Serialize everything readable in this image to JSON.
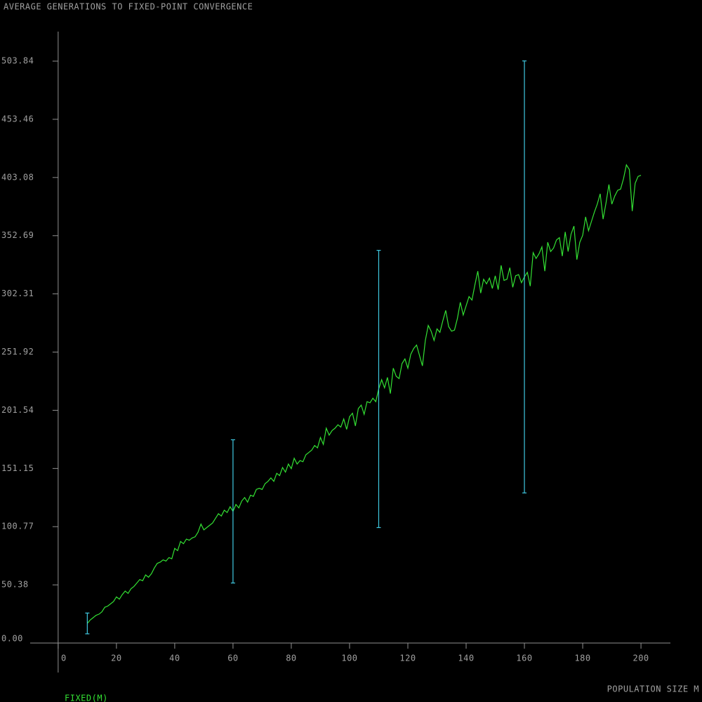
{
  "chart_data": {
    "type": "line",
    "title": "AVERAGE GENERATIONS TO FIXED-POINT CONVERGENCE",
    "x_label": "POPULATION SIZE M",
    "xlim": [
      -9.6,
      210.1
    ],
    "ylim": [
      -25.5,
      529.4
    ],
    "xticks": [
      0,
      20,
      40,
      60,
      80,
      100,
      120,
      140,
      160,
      180,
      200
    ],
    "yticks": [
      {
        "value": 0,
        "label": "0.00"
      },
      50.38,
      100.77,
      151.15,
      201.54,
      251.92,
      302.31,
      352.69,
      403.08,
      453.46,
      503.84
    ],
    "series": [
      {
        "name": "FIXED(M)",
        "color": "#33e033",
        "x": [
          10,
          11,
          12,
          13,
          14,
          15,
          16,
          17,
          18,
          19,
          20,
          21,
          22,
          23,
          24,
          25,
          26,
          27,
          28,
          29,
          30,
          31,
          32,
          33,
          34,
          35,
          36,
          37,
          38,
          39,
          40,
          41,
          42,
          43,
          44,
          45,
          46,
          47,
          48,
          49,
          50,
          51,
          52,
          53,
          54,
          55,
          56,
          57,
          58,
          59,
          60,
          61,
          62,
          63,
          64,
          65,
          66,
          67,
          68,
          69,
          70,
          71,
          72,
          73,
          74,
          75,
          76,
          77,
          78,
          79,
          80,
          81,
          82,
          83,
          84,
          85,
          86,
          87,
          88,
          89,
          90,
          91,
          92,
          93,
          94,
          95,
          96,
          97,
          98,
          99,
          100,
          101,
          102,
          103,
          104,
          105,
          106,
          107,
          108,
          109,
          110,
          111,
          112,
          113,
          114,
          115,
          116,
          117,
          118,
          119,
          120,
          121,
          122,
          123,
          124,
          125,
          126,
          127,
          128,
          129,
          130,
          131,
          132,
          133,
          134,
          135,
          136,
          137,
          138,
          139,
          140,
          141,
          142,
          143,
          144,
          145,
          146,
          147,
          148,
          149,
          150,
          151,
          152,
          153,
          154,
          155,
          156,
          157,
          158,
          159,
          160,
          161,
          162,
          163,
          164,
          165,
          166,
          167,
          168,
          169,
          170,
          171,
          172,
          173,
          174,
          175,
          176,
          177,
          178,
          179,
          180,
          181,
          182,
          183,
          184,
          185,
          186,
          187,
          188,
          189,
          190,
          191,
          192,
          193,
          194,
          195,
          196,
          197,
          198,
          199,
          200
        ],
        "values": [
          17,
          20,
          22,
          24,
          25,
          27,
          31,
          32,
          34,
          36,
          40,
          38,
          42,
          45,
          43,
          47,
          49,
          52,
          55,
          54,
          59,
          57,
          60,
          65,
          69,
          70,
          72,
          71,
          74,
          73,
          82,
          80,
          88,
          86,
          90,
          89,
          91,
          92,
          96,
          103,
          98,
          100,
          102,
          104,
          108,
          112,
          110,
          115,
          113,
          118,
          114,
          120,
          117,
          123,
          126,
          122,
          128,
          127,
          133,
          134,
          133,
          138,
          140,
          143,
          140,
          147,
          145,
          152,
          148,
          155,
          151,
          160,
          155,
          158,
          157,
          163,
          165,
          167,
          171,
          169,
          178,
          172,
          186,
          180,
          184,
          186,
          189,
          187,
          194,
          185,
          196,
          199,
          188,
          203,
          206,
          198,
          209,
          208,
          212,
          209,
          220,
          228,
          221,
          230,
          216,
          238,
          231,
          229,
          242,
          246,
          238,
          250,
          255,
          258,
          249,
          240,
          262,
          275,
          270,
          262,
          272,
          269,
          279,
          288,
          274,
          270,
          271,
          281,
          295,
          284,
          292,
          300,
          297,
          310,
          322,
          303,
          315,
          311,
          316,
          307,
          318,
          306,
          327,
          314,
          315,
          325,
          308,
          318,
          319,
          312,
          317,
          321,
          309,
          338,
          333,
          337,
          343,
          322,
          347,
          339,
          342,
          349,
          351,
          335,
          356,
          339,
          354,
          361,
          332,
          347,
          353,
          369,
          357,
          365,
          373,
          380,
          389,
          367,
          381,
          397,
          380,
          387,
          392,
          393,
          402,
          414,
          410,
          374,
          398,
          404,
          405
        ]
      }
    ],
    "error_bars": {
      "color": "#40c8e0",
      "x": [
        10,
        60,
        110,
        160
      ],
      "values": [
        17,
        114,
        220,
        317
      ],
      "errors": [
        9,
        62,
        120,
        187
      ]
    }
  }
}
